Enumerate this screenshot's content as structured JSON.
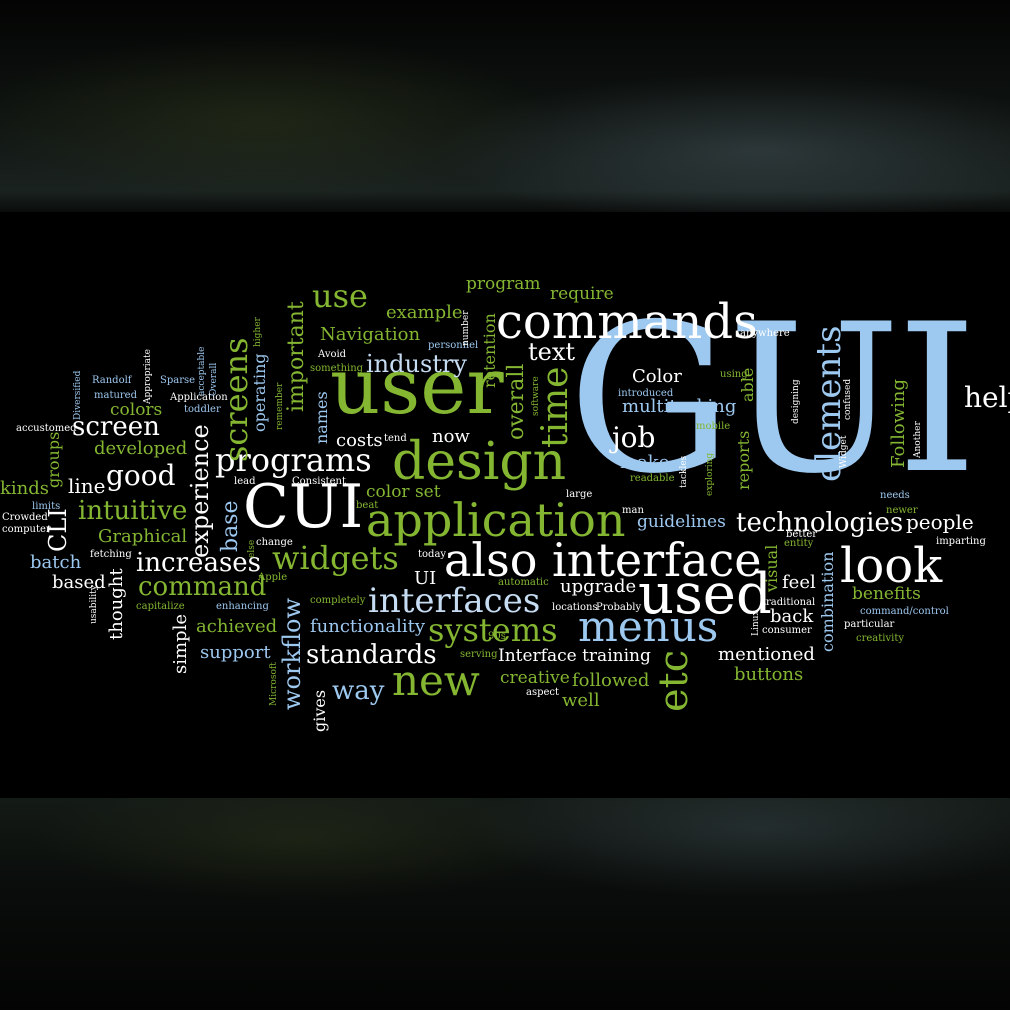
{
  "words": {
    "gui": "GUI",
    "user": "user",
    "commands": "commands",
    "design": "design",
    "cui": "CUI",
    "application": "application",
    "also_interface": "also interface",
    "used": "used",
    "look": "look",
    "menus": "menus",
    "interfaces": "interfaces",
    "new": "new",
    "systems": "systems",
    "widgets": "widgets",
    "programs": "programs",
    "elements": "elements",
    "help": "help",
    "use": "use",
    "industry": "industry",
    "text": "text",
    "time": "time",
    "screens": "screens",
    "job": "job",
    "etc": "etc",
    "technologies": "technologies",
    "people": "people",
    "increases": "increases",
    "command": "command",
    "good": "good",
    "screen": "screen",
    "intuitive": "intuitive",
    "standards": "standards",
    "way": "way",
    "workflow": "workflow",
    "experience": "experience",
    "base": "base",
    "important": "important",
    "overall": "overall",
    "cli": "CLI",
    "kinds": "kinds",
    "line": "line",
    "groups": "groups",
    "colors": "colors",
    "developed": "developed",
    "graphical": "Graphical",
    "batch": "batch",
    "based": "based",
    "thought": "thought",
    "simple": "simple",
    "achieved": "achieved",
    "support": "support",
    "gives": "gives",
    "functionality": "functionality",
    "interface_training": "Interface training",
    "creative": "creative",
    "followed": "followed",
    "well": "well",
    "mentioned": "mentioned",
    "buttons": "buttons",
    "guidelines": "guidelines",
    "upgrade": "upgrade",
    "ui": "UI",
    "color_set": "color set",
    "now": "now",
    "costs": "costs",
    "names": "names",
    "operating": "operating",
    "navigation": "Navigation",
    "example": "example",
    "program": "program",
    "require": "require",
    "retention": "retention",
    "color": "Color",
    "multitasking": "multitasking",
    "make": "make",
    "able": "able",
    "reports": "reports",
    "following": "Following",
    "visual": "visual",
    "combination": "combination",
    "feel": "feel",
    "back": "back",
    "benefits": "benefits",
    "anywhere": "anywhere",
    "using": "using",
    "introduced": "introduced",
    "mobile": "mobile",
    "readable": "readable",
    "designing": "designing",
    "confused": "confused",
    "widget": "Widget",
    "another": "Another",
    "needs": "needs",
    "newer": "newer",
    "imparting": "imparting",
    "better": "better",
    "entity": "entity",
    "traditional": "traditional",
    "command_control": "command/control",
    "particular": "particular",
    "creativity": "creativity",
    "consumer": "consumer",
    "linux": "Linux",
    "exploring": "exploring",
    "tackles": "tackles",
    "man": "man",
    "large": "large",
    "probably": "Probably",
    "locations": "locations",
    "automatic": "automatic",
    "nineties": "90s",
    "serving": "serving",
    "aspect": "aspect",
    "completely": "completely",
    "today": "today",
    "apple": "Apple",
    "enhancing": "enhancing",
    "capitalize": "capitalize",
    "change": "change",
    "else": "else",
    "microsoft": "Microsoft",
    "fetching": "fetching",
    "usability": "usability",
    "computer": "computer",
    "crowded": "Crowded",
    "limits": "limits",
    "accustomed": "accustomed",
    "diversified": "Diversified",
    "randolf": "Randolf",
    "matured": "matured",
    "appropriate": "Appropriate",
    "sparse": "Sparse",
    "application_small": "Application",
    "toddler": "toddler",
    "acceptable": "acceptable",
    "overall_small": "Overall",
    "higher": "higher",
    "remember": "remember",
    "lead": "lead",
    "consistent": "Consistent",
    "avoid": "Avoid",
    "something": "something",
    "tend": "tend",
    "beat": "beat",
    "personnel": "personnel",
    "number": "number",
    "software": "software"
  },
  "colors": {
    "green": "#84b632",
    "blue": "#9dc8ef",
    "white": "#ffffff"
  }
}
